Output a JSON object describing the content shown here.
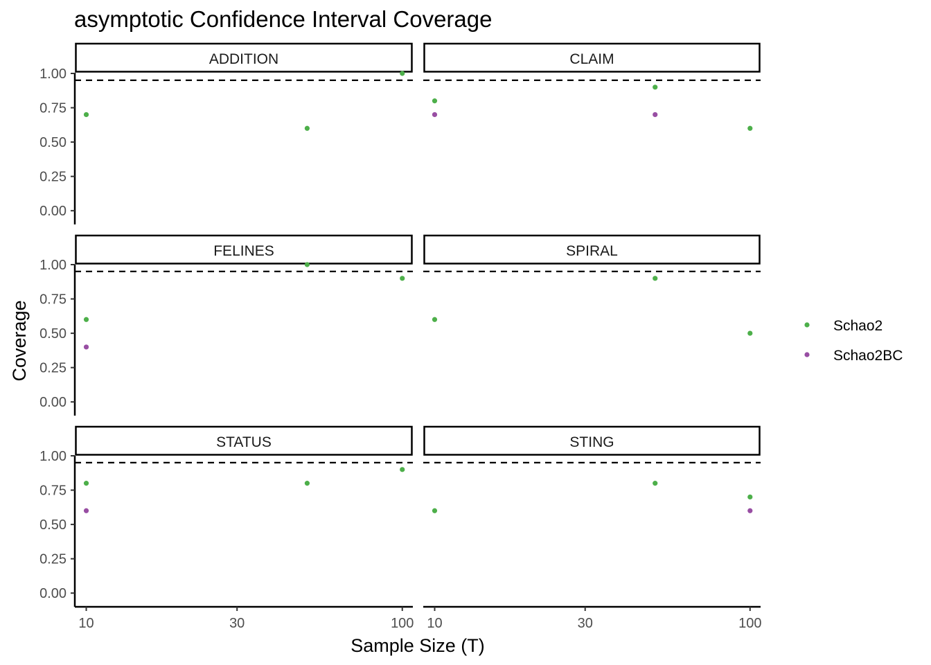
{
  "chart_data": {
    "type": "scatter",
    "title": "asymptotic Confidence Interval Coverage",
    "xlabel": "Sample Size (T)",
    "ylabel": "Coverage",
    "x_scale": "log10",
    "x_ticks": [
      10,
      30,
      100
    ],
    "x_tick_labels": [
      "10",
      "30",
      "100"
    ],
    "xlim": [
      9.2,
      108
    ],
    "y_ticks": [
      0,
      0.25,
      0.5,
      0.75,
      1.0
    ],
    "y_tick_labels": [
      "0.00",
      "0.25",
      "0.50",
      "0.75",
      "1.00"
    ],
    "ylim": [
      0,
      1.02
    ],
    "reference_line": {
      "y": 0.95,
      "style": "dashed"
    },
    "legend_position": "right",
    "series_styles": [
      {
        "name": "Schao2",
        "color": "#4daf4a"
      },
      {
        "name": "Schao2BC",
        "color": "#984ea3"
      }
    ],
    "panels": [
      {
        "label": "ADDITION",
        "points": [
          {
            "series": "Schao2",
            "x": 10,
            "y": 0.7
          },
          {
            "series": "Schao2",
            "x": 50,
            "y": 0.6
          },
          {
            "series": "Schao2",
            "x": 100,
            "y": 1.0
          }
        ]
      },
      {
        "label": "CLAIM",
        "points": [
          {
            "series": "Schao2",
            "x": 10,
            "y": 0.8
          },
          {
            "series": "Schao2BC",
            "x": 10,
            "y": 0.7
          },
          {
            "series": "Schao2",
            "x": 50,
            "y": 0.9
          },
          {
            "series": "Schao2BC",
            "x": 50,
            "y": 0.7
          },
          {
            "series": "Schao2",
            "x": 100,
            "y": 0.6
          }
        ]
      },
      {
        "label": "FELINES",
        "points": [
          {
            "series": "Schao2",
            "x": 10,
            "y": 0.6
          },
          {
            "series": "Schao2BC",
            "x": 10,
            "y": 0.4
          },
          {
            "series": "Schao2",
            "x": 50,
            "y": 1.0
          },
          {
            "series": "Schao2",
            "x": 100,
            "y": 0.9
          }
        ]
      },
      {
        "label": "SPIRAL",
        "points": [
          {
            "series": "Schao2",
            "x": 10,
            "y": 0.6
          },
          {
            "series": "Schao2",
            "x": 50,
            "y": 0.9
          },
          {
            "series": "Schao2",
            "x": 100,
            "y": 0.5
          }
        ]
      },
      {
        "label": "STATUS",
        "points": [
          {
            "series": "Schao2",
            "x": 10,
            "y": 0.8
          },
          {
            "series": "Schao2BC",
            "x": 10,
            "y": 0.6
          },
          {
            "series": "Schao2",
            "x": 50,
            "y": 0.8
          },
          {
            "series": "Schao2",
            "x": 100,
            "y": 0.9
          }
        ]
      },
      {
        "label": "STING",
        "points": [
          {
            "series": "Schao2",
            "x": 10,
            "y": 0.6
          },
          {
            "series": "Schao2",
            "x": 50,
            "y": 0.8
          },
          {
            "series": "Schao2",
            "x": 100,
            "y": 0.7
          },
          {
            "series": "Schao2BC",
            "x": 100,
            "y": 0.6
          }
        ]
      }
    ]
  }
}
